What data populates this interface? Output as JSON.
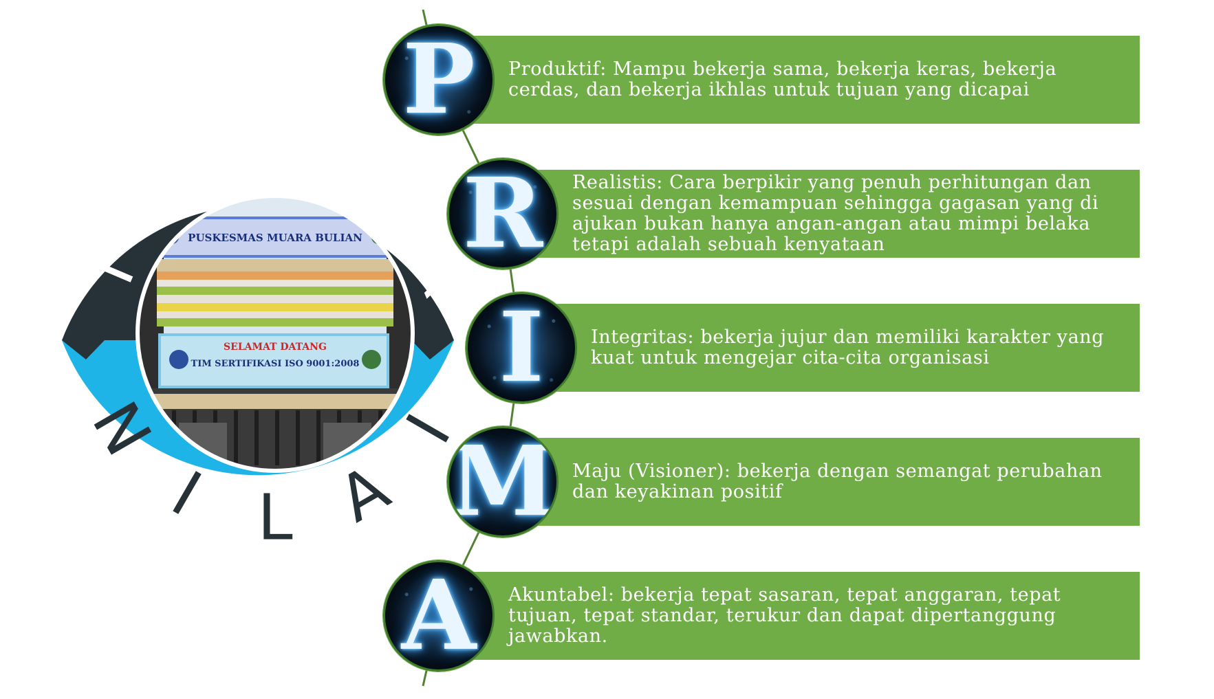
{
  "ring": {
    "top_letters": [
      "T",
      "A",
      "T",
      "A"
    ],
    "bottom_letters": [
      "N",
      "I",
      "L",
      "A",
      "I"
    ],
    "top_color": "#263238",
    "bottom_color": "#1eb4e8",
    "photo": {
      "banner_title": "PUSKESMAS MUARA BULIAN",
      "welcome_title": "SELAMAT DATANG",
      "welcome_subtitle": "TIM SERTIFIKASI ISO 9001:2008"
    }
  },
  "values": [
    {
      "letter": "P",
      "text": "Produktif: Mampu bekerja sama, bekerja keras, bekerja cerdas, dan bekerja ikhlas untuk tujuan yang dicapai"
    },
    {
      "letter": "R",
      "text": "Realistis: Cara berpikir yang penuh perhitungan dan sesuai dengan kemampuan sehingga gagasan yang di ajukan bukan hanya angan-angan atau mimpi belaka tetapi adalah sebuah kenyataan"
    },
    {
      "letter": "I",
      "text": "Integritas: bekerja jujur dan memiliki karakter yang kuat untuk mengejar cita-cita organisasi"
    },
    {
      "letter": "M",
      "text": "Maju (Visioner): bekerja dengan semangat perubahan dan keyakinan positif"
    },
    {
      "letter": "A",
      "text": "Akuntabel: bekerja tepat sasaran, tepat anggaran, tepat tujuan, tepat standar, terukur dan dapat dipertanggung jawabkan."
    }
  ],
  "colors": {
    "bar": "#70ad47",
    "connector": "#548235"
  }
}
